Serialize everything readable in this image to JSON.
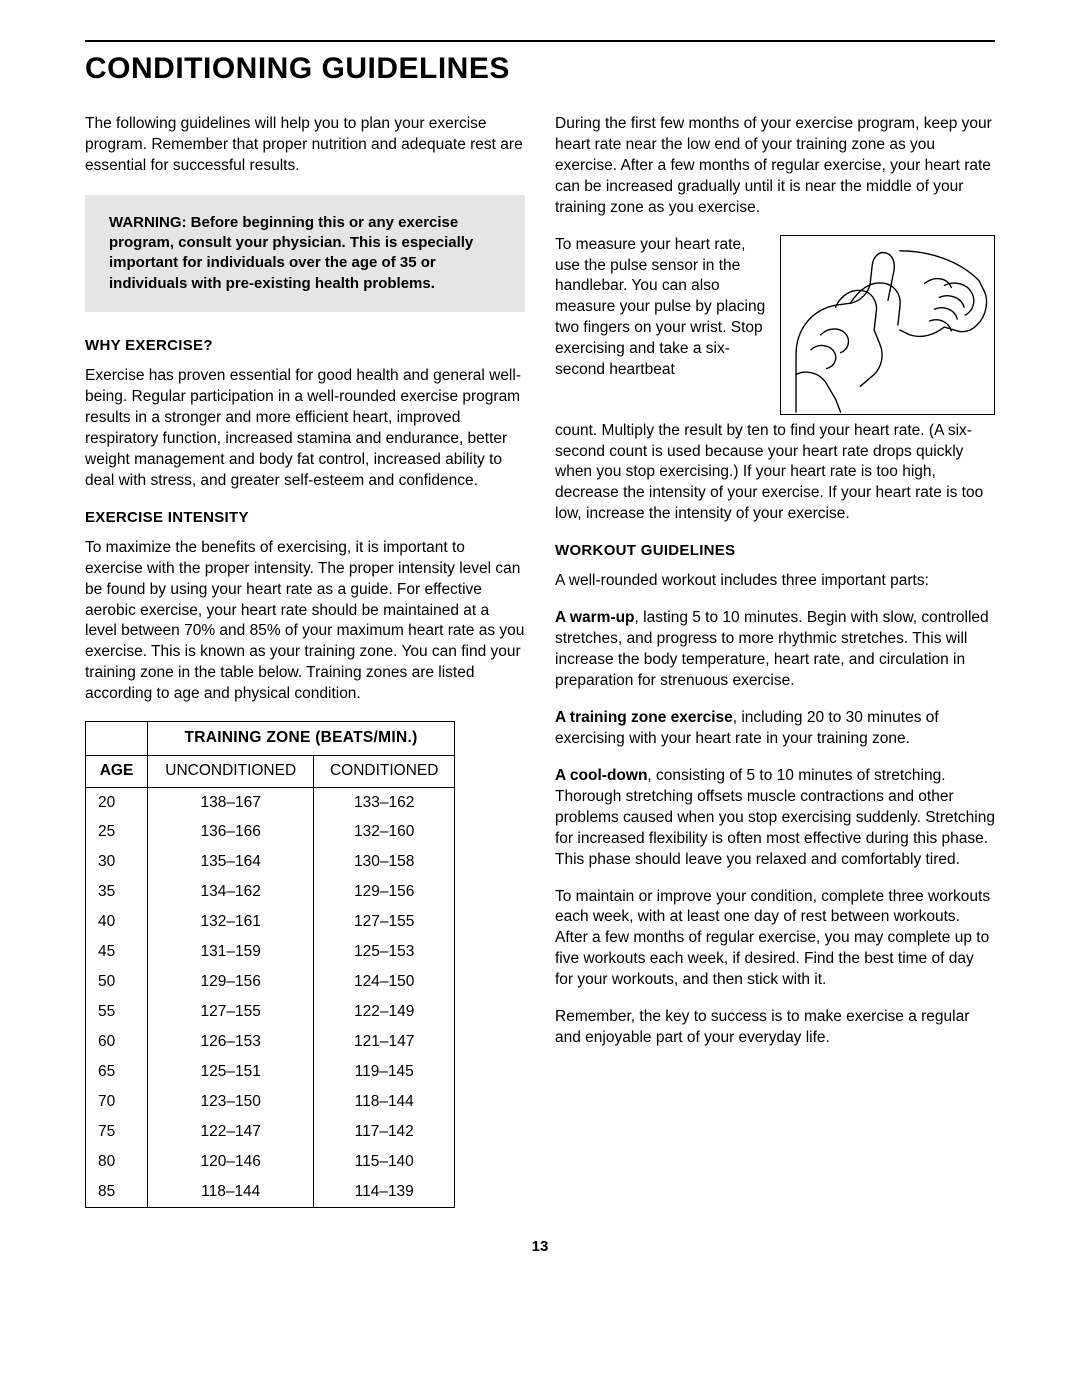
{
  "page_title": "CONDITIONING GUIDELINES",
  "intro": "The following guidelines will help you to plan your exercise program. Remember that proper nutrition and adequate rest are essential for successful results.",
  "warning": "WARNING: Before beginning this or any exercise program, consult your physician. This is especially important for individuals over the age of 35 or individuals with pre-existing health problems.",
  "sections": {
    "why_head": "WHY EXERCISE?",
    "why_text": "Exercise has proven essential for good health and general well-being. Regular participation in a well-rounded exercise program results in a stronger and more efficient heart, improved respiratory function, increased stamina and endurance, better weight management and body fat control, increased ability to deal with stress, and greater self-esteem and confidence.",
    "intensity_head": "EXERCISE INTENSITY",
    "intensity_text": "To maximize the benefits of exercising, it is important to exercise with the proper intensity. The proper intensity level can be found by using your heart rate as a guide. For effective aerobic exercise, your heart rate should be maintained at a level between 70% and 85% of your maximum heart rate as you exercise. This is known as your training zone. You can find your training zone in the table below. Training zones are listed according to age and physical condition.",
    "workout_head": "WORKOUT GUIDELINES",
    "workout_intro": "A well-rounded workout includes three important parts:",
    "warmup_label": "A warm-up",
    "warmup_text": ", lasting 5 to 10 minutes. Begin with slow, controlled stretches, and progress to more rhythmic stretches. This will increase the body temperature, heart rate, and circulation in preparation for strenuous exercise.",
    "training_label": "A training zone exercise",
    "training_text": ", including 20 to 30 minutes of exercising with your heart rate in your training zone.",
    "cooldown_label": "A cool-down",
    "cooldown_text": ", consisting of 5 to 10 minutes of stretching. Thorough stretching offsets muscle contractions and other problems caused when you stop exercising suddenly. Stretching for increased flexibility is often most effective during this phase. This phase should leave you relaxed and comfortably tired.",
    "maintain_text": "To maintain or improve your condition, complete three workouts each week, with at least one day of rest between workouts. After a few months of regular exercise, you may complete up to five workouts each week, if desired. Find the best time of day for your workouts, and then stick with it.",
    "remember_text": "Remember, the key to success is to make exercise a regular and enjoyable part of your everyday life."
  },
  "right_intro": "During the first few months of your exercise program, keep your heart rate near the low end of your training zone as you exercise. After a few months of regular exercise, your heart rate can be increased gradually until it is near the middle of your training zone as you exercise.",
  "pulse_text_a": "To measure your heart rate, use the pulse sensor in the handlebar. You can also measure your pulse by placing two fingers on your wrist. Stop exercising and take a six-second heartbeat",
  "pulse_text_b": "count. Multiply the result by ten to find your heart rate. (A six-second count is used because your heart rate drops quickly when you stop exercising.) If your heart rate is too high, decrease the intensity of your exercise. If your heart rate is too low, increase the intensity of your exercise.",
  "table": {
    "title": "TRAINING ZONE (BEATS/MIN.)",
    "age_head": "AGE",
    "col1": "UNCONDITIONED",
    "col2": "CONDITIONED",
    "rows": [
      {
        "age": "20",
        "unc": "138–167",
        "con": "133–162"
      },
      {
        "age": "25",
        "unc": "136–166",
        "con": "132–160"
      },
      {
        "age": "30",
        "unc": "135–164",
        "con": "130–158"
      },
      {
        "age": "35",
        "unc": "134–162",
        "con": "129–156"
      },
      {
        "age": "40",
        "unc": "132–161",
        "con": "127–155"
      },
      {
        "age": "45",
        "unc": "131–159",
        "con": "125–153"
      },
      {
        "age": "50",
        "unc": "129–156",
        "con": "124–150"
      },
      {
        "age": "55",
        "unc": "127–155",
        "con": "122–149"
      },
      {
        "age": "60",
        "unc": "126–153",
        "con": "121–147"
      },
      {
        "age": "65",
        "unc": "125–151",
        "con": "119–145"
      },
      {
        "age": "70",
        "unc": "123–150",
        "con": "118–144"
      },
      {
        "age": "75",
        "unc": "122–147",
        "con": "117–142"
      },
      {
        "age": "80",
        "unc": "120–146",
        "con": "115–140"
      },
      {
        "age": "85",
        "unc": "118–144",
        "con": "114–139"
      }
    ]
  },
  "page_number": "13"
}
